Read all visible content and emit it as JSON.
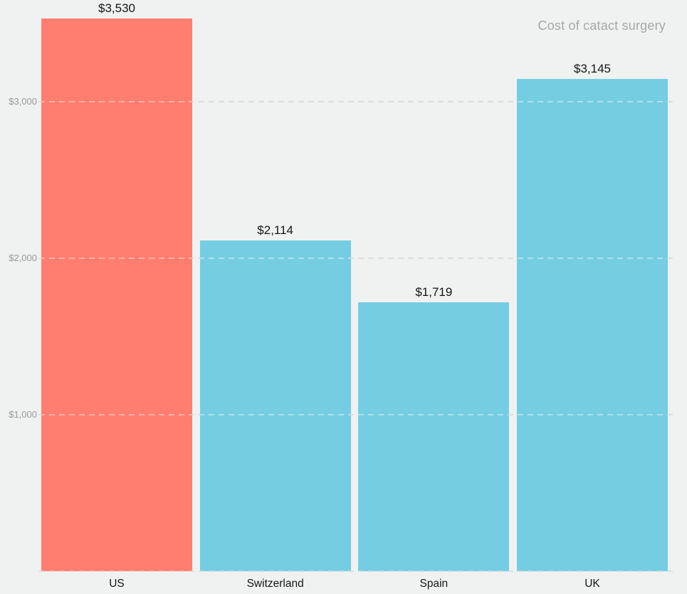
{
  "title": "Cost of catact surgery",
  "colors": {
    "background": "#f0f1f1",
    "bar_highlight": "#ff7e70",
    "bar_default": "#75cde2",
    "grid": "#c4c4c4",
    "ytick_text": "#999999",
    "title_text": "#a7a7a7",
    "label_text": "#151515"
  },
  "chart_data": {
    "type": "bar",
    "title": "Cost of catact surgery",
    "xlabel": "",
    "ylabel": "",
    "categories": [
      "US",
      "Switzerland",
      "Spain",
      "UK"
    ],
    "values": [
      3530,
      2114,
      1719,
      3145
    ],
    "value_labels": [
      "$3,530",
      "$2,114",
      "$1,719",
      "$3,145"
    ],
    "bar_colors": [
      "#ff7e70",
      "#75cde2",
      "#75cde2",
      "#75cde2"
    ],
    "ylim": [
      0,
      3650
    ],
    "yticks": [
      0,
      1000,
      2000,
      3000
    ],
    "ytick_labels": [
      "",
      "$1,000",
      "$2,000",
      "$3,000"
    ],
    "grid": "horizontal-dashed",
    "legend": "none",
    "orientation": "vertical"
  }
}
